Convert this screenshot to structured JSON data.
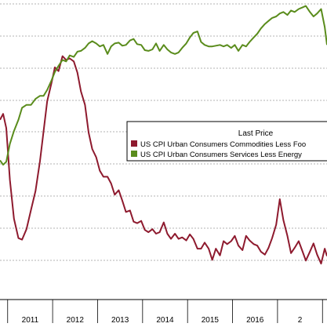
{
  "chart_data": {
    "type": "line",
    "x_ticks": [
      "2011",
      "2012",
      "2013",
      "2014",
      "2015",
      "2016",
      "2"
    ],
    "legend": {
      "title": "Last Price",
      "placement": "center-right",
      "entries": [
        "US CPI Urban Consumers Commodities Less Foo",
        "US CPI Urban Consumers Services Less Energy"
      ]
    },
    "grid": "horizontal-dashed",
    "x_range": [
      2009.83,
      2017.1
    ],
    "y_range": [
      -20,
      380
    ],
    "series": [
      {
        "color": "#8e1a2e",
        "x": [
          2009.83,
          2009.9,
          2009.97,
          2010.05,
          2010.14,
          2010.24,
          2010.32,
          2010.42,
          2010.52,
          2010.62,
          2010.72,
          2010.8,
          2010.88,
          2010.97,
          2011.05,
          2011.13,
          2011.22,
          2011.3,
          2011.38,
          2011.47,
          2011.55,
          2011.63,
          2011.72,
          2011.8,
          2011.88,
          2011.97,
          2012.05,
          2012.13,
          2012.22,
          2012.3,
          2012.38,
          2012.47,
          2012.55,
          2012.63,
          2012.72,
          2012.8,
          2012.88,
          2012.97,
          2013.05,
          2013.13,
          2013.22,
          2013.3,
          2013.38,
          2013.47,
          2013.55,
          2013.63,
          2013.72,
          2013.8,
          2013.88,
          2013.97,
          2014.05,
          2014.13,
          2014.22,
          2014.3,
          2014.38,
          2014.47,
          2014.55,
          2014.63,
          2014.72,
          2014.8,
          2014.88,
          2014.97,
          2015.05,
          2015.13,
          2015.22,
          2015.3,
          2015.38,
          2015.47,
          2015.55,
          2015.63,
          2015.72,
          2015.8,
          2015.88,
          2015.97,
          2016.05,
          2016.13,
          2016.22,
          2016.3,
          2016.38,
          2016.47,
          2016.55,
          2016.63,
          2016.72,
          2016.8,
          2016.88,
          2016.97,
          2017.05,
          2017.1
        ],
        "y": [
          220,
          228,
          209,
          140,
          88,
          62,
          60,
          74,
          100,
          125,
          165,
          205,
          245,
          268,
          290,
          285,
          305,
          300,
          302,
          298,
          283,
          258,
          240,
          203,
          181,
          170,
          152,
          144,
          144,
          135,
          120,
          126,
          112,
          97,
          99,
          84,
          82,
          85,
          73,
          70,
          74,
          68,
          70,
          83,
          68,
          61,
          68,
          61,
          63,
          59,
          67,
          61,
          48,
          48,
          56,
          48,
          33,
          48,
          39,
          58,
          54,
          58,
          65,
          52,
          46,
          65,
          59,
          54,
          52,
          44,
          40,
          49,
          62,
          80,
          114,
          86,
          65,
          42,
          49,
          58,
          45,
          32,
          44,
          55,
          40,
          28,
          48,
          38
        ]
      },
      {
        "color": "#5a8c1c",
        "x": [
          2009.83,
          2009.9,
          2009.97,
          2010.05,
          2010.14,
          2010.24,
          2010.32,
          2010.42,
          2010.52,
          2010.62,
          2010.72,
          2010.8,
          2010.88,
          2010.97,
          2011.05,
          2011.13,
          2011.22,
          2011.3,
          2011.38,
          2011.47,
          2011.55,
          2011.63,
          2011.72,
          2011.8,
          2011.88,
          2011.97,
          2012.05,
          2012.13,
          2012.22,
          2012.3,
          2012.38,
          2012.47,
          2012.55,
          2012.63,
          2012.72,
          2012.8,
          2012.88,
          2012.97,
          2013.05,
          2013.13,
          2013.22,
          2013.3,
          2013.38,
          2013.47,
          2013.55,
          2013.63,
          2013.72,
          2013.8,
          2013.88,
          2013.97,
          2014.05,
          2014.13,
          2014.22,
          2014.3,
          2014.38,
          2014.47,
          2014.55,
          2014.63,
          2014.72,
          2014.8,
          2014.88,
          2014.97,
          2015.05,
          2015.13,
          2015.22,
          2015.3,
          2015.38,
          2015.47,
          2015.55,
          2015.63,
          2015.72,
          2015.8,
          2015.88,
          2015.97,
          2016.05,
          2016.13,
          2016.22,
          2016.3,
          2016.38,
          2016.47,
          2016.55,
          2016.63,
          2016.72,
          2016.8,
          2016.88,
          2016.97,
          2017.05,
          2017.1
        ],
        "y": [
          166,
          160,
          164,
          188,
          205,
          220,
          236,
          240,
          240,
          248,
          252,
          252,
          260,
          272,
          284,
          292,
          300,
          298,
          306,
          304,
          311,
          312,
          316,
          322,
          325,
          322,
          318,
          320,
          308,
          318,
          322,
          323,
          319,
          320,
          326,
          328,
          321,
          320,
          313,
          312,
          314,
          322,
          312,
          320,
          314,
          310,
          308,
          310,
          316,
          322,
          330,
          336,
          338,
          324,
          320,
          318,
          318,
          319,
          320,
          318,
          320,
          316,
          320,
          312,
          320,
          318,
          324,
          330,
          335,
          342,
          348,
          352,
          356,
          358,
          362,
          364,
          360,
          366,
          364,
          368,
          370,
          372,
          364,
          358,
          362,
          368,
          344,
          320
        ]
      }
    ]
  }
}
